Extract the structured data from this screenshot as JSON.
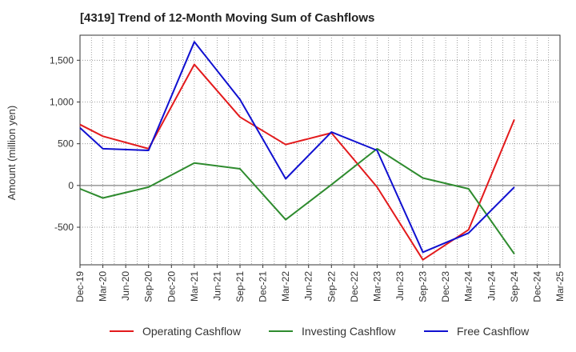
{
  "chart_data": {
    "type": "line",
    "title": "[4319]  Trend of 12-Month Moving Sum of Cashflows",
    "xlabel": "",
    "ylabel": "Amount (million yen)",
    "categories": [
      "Dec-19",
      "Mar-20",
      "Jun-20",
      "Sep-20",
      "Dec-20",
      "Mar-21",
      "Jun-21",
      "Sep-21",
      "Dec-21",
      "Mar-22",
      "Jun-22",
      "Sep-22",
      "Dec-22",
      "Mar-23",
      "Jun-23",
      "Sep-23",
      "Dec-23",
      "Mar-24",
      "Jun-24",
      "Sep-24",
      "Dec-24",
      "Mar-25"
    ],
    "ylim": [
      -950,
      1800
    ],
    "yticks": [
      -500,
      0,
      500,
      1000,
      1500
    ],
    "ytick_labels": [
      "-500",
      "0",
      "500",
      "1,000",
      "1,500"
    ],
    "grid": true,
    "legend_position": "bottom",
    "series": [
      {
        "name": "Operating Cashflow",
        "color": "#e31a1c",
        "values": [
          730,
          590,
          null,
          440,
          null,
          1450,
          null,
          820,
          null,
          490,
          null,
          630,
          null,
          -20,
          null,
          -890,
          null,
          -530,
          null,
          790,
          null,
          null
        ]
      },
      {
        "name": "Investing Cashflow",
        "color": "#2e8b2e",
        "values": [
          -40,
          -150,
          null,
          -20,
          null,
          270,
          null,
          200,
          null,
          -410,
          null,
          10,
          null,
          440,
          null,
          90,
          null,
          -40,
          null,
          -820,
          null,
          null
        ]
      },
      {
        "name": "Free Cashflow",
        "color": "#1010d0",
        "values": [
          690,
          440,
          null,
          420,
          null,
          1720,
          null,
          1030,
          null,
          80,
          null,
          640,
          null,
          420,
          null,
          -800,
          null,
          -570,
          null,
          -20,
          null,
          null
        ]
      }
    ]
  }
}
